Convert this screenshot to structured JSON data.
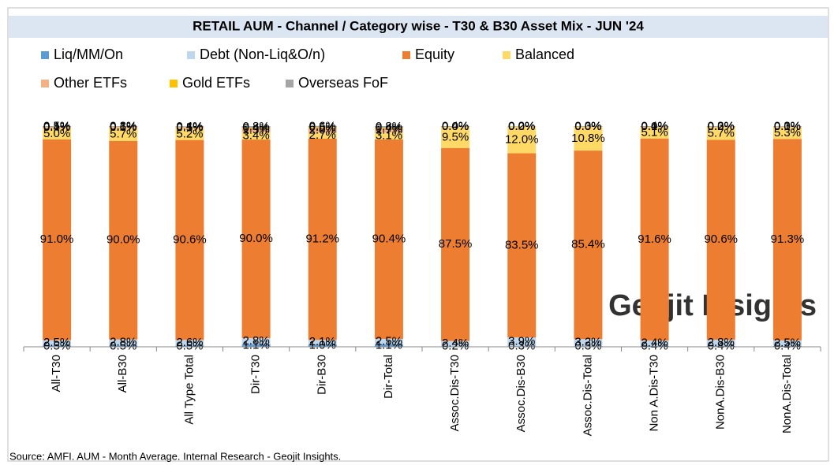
{
  "chart_data": {
    "type": "stacked_bar",
    "title": "RETAIL AUM - Channel / Category wise - T30 & B30 Asset Mix - JUN '24",
    "categories": [
      "All-T30",
      "All-B30",
      "All Type Total",
      "Dir-T30",
      "Dir-B30",
      "Dir-Total",
      "Assoc.Dis-T30",
      "Assoc.Dis-B30",
      "Assoc.Dis-Total",
      "Non A.Dis-T30",
      "NonA.Dis-B30",
      "NonA.Dis-Total"
    ],
    "ylim": [
      0,
      100
    ],
    "legend": "top",
    "series": [
      {
        "name": "Liq/MM/On",
        "color": "#5b9bd5",
        "values": [
          0.5,
          0.5,
          0.5,
          1.1,
          1.0,
          1.1,
          0.2,
          0.3,
          0.3,
          0.4,
          0.4,
          0.4
        ],
        "value_labels": [
          "0.5%",
          "0.5%",
          "0.5%",
          "1.1%",
          "1.0%",
          "1.1%",
          "0.2%",
          "0.3%",
          "0.3%",
          "0.4%",
          "0.4%",
          "0.4%"
        ]
      },
      {
        "name": "Debt (Non-Liq&O/n)",
        "color": "#bdd7ee",
        "values": [
          2.5,
          2.8,
          2.6,
          2.8,
          2.1,
          2.5,
          2.4,
          3.9,
          3.2,
          2.4,
          2.8,
          2.5
        ],
        "value_labels": [
          "2.5%",
          "2.8%",
          "2.6%",
          "2.8%",
          "2.1%",
          "2.5%",
          "2.4%",
          "3.9%",
          "3.2%",
          "2.4%",
          "2.8%",
          "2.5%"
        ]
      },
      {
        "name": "Equity",
        "color": "#ed7d31",
        "values": [
          91.0,
          90.0,
          90.6,
          90.0,
          91.2,
          90.4,
          87.5,
          83.5,
          85.4,
          91.6,
          90.6,
          91.3
        ],
        "value_labels": [
          "91.0%",
          "90.0%",
          "90.6%",
          "90.0%",
          "91.2%",
          "90.4%",
          "87.5%",
          "83.5%",
          "85.4%",
          "91.6%",
          "90.6%",
          "91.3%"
        ]
      },
      {
        "name": "Balanced",
        "color": "#ffd966",
        "values": [
          5.0,
          5.7,
          5.2,
          3.4,
          2.7,
          3.1,
          9.5,
          12.0,
          10.8,
          5.1,
          5.7,
          5.3
        ],
        "value_labels": [
          "5.0%",
          "5.7%",
          "5.2%",
          "3.4%",
          "2.7%",
          "3.1%",
          "9.5%",
          "12.0%",
          "10.8%",
          "5.1%",
          "5.7%",
          "5.3%"
        ]
      },
      {
        "name": "Other ETFs",
        "color": "#f4b183",
        "values": [
          0.4,
          0.6,
          0.5,
          1.5,
          2.0,
          1.7,
          0.0,
          0.0,
          0.0,
          0.1,
          0.2,
          0.1
        ],
        "value_labels": [
          "0.4%",
          "0.6%",
          "0.5%",
          "1.5%",
          "2.0%",
          "1.7%",
          "0.0%",
          "0.0%",
          "0.0%",
          "0.1%",
          "0.2%",
          "0.1%"
        ]
      },
      {
        "name": "Gold ETFs",
        "color": "#ffc000",
        "values": [
          0.1,
          0.1,
          0.1,
          0.4,
          0.5,
          0.4,
          0.0,
          0.0,
          0.0,
          0.0,
          0.0,
          0.0
        ],
        "value_labels": [
          "0.1%",
          "0.1%",
          "0.1%",
          "0.4%",
          "0.5%",
          "0.4%",
          "0.0%",
          "0.0%",
          "0.0%",
          "0.0%",
          "0.0%",
          "0.0%"
        ]
      },
      {
        "name": "Overseas FoF",
        "color": "#a5a5a5",
        "values": [
          0.5,
          0.3,
          0.4,
          0.8,
          0.6,
          0.8,
          0.4,
          0.2,
          0.3,
          0.4,
          0.3,
          0.3
        ],
        "value_labels": [
          "0.5%",
          "0.3%",
          "0.4%",
          "0.8%",
          "0.6%",
          "0.8%",
          "0.4%",
          "0.2%",
          "0.3%",
          "0.4%",
          "0.3%",
          "0.3%"
        ]
      }
    ],
    "watermark": "Geojit Insights",
    "source": "Source: AMFI. AUM - Month Average. Internal Research - Geojit Insights."
  }
}
